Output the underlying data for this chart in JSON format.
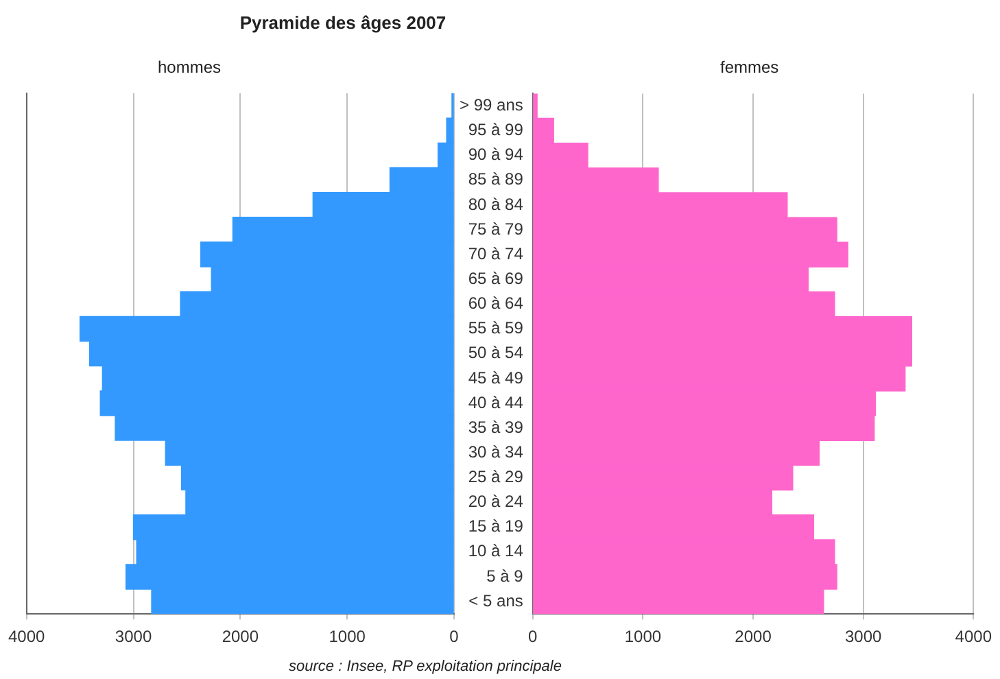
{
  "chart_data": [
    {
      "type": "bar",
      "title": "Pyramide des âges 2007",
      "subtitle": "hommes",
      "orientation": "horizontal",
      "grid": "x",
      "tick_labels": "x",
      "categories": [
        null,
        null,
        null,
        null,
        null,
        null,
        null,
        null,
        null,
        null,
        null,
        null,
        null,
        null,
        null,
        null,
        null,
        null,
        null,
        null,
        null
      ],
      "values": [
        20,
        70,
        150,
        600,
        1320,
        2070,
        2370,
        2270,
        2560,
        3500,
        3410,
        3290,
        3310,
        3170,
        2700,
        2550,
        2510,
        3000,
        2970,
        3070,
        2830
      ],
      "color": "#3399ff",
      "xlim": [
        4000,
        0
      ],
      "xticks": [
        4000,
        3000,
        2000,
        1000,
        0
      ]
    },
    {
      "type": "bar",
      "subtitle": "femmes",
      "orientation": "horizontal",
      "grid": "x",
      "annotations": [
        "source : Insee, RP exploitation principale"
      ],
      "categories": [
        "> 99 ans",
        "95 à 99",
        "90 à 94",
        "85 à 89",
        "80 à 84",
        "75 à 79",
        "70 à 74",
        "65 à 69",
        "60 à 64",
        "55 à 59",
        "50 à 54",
        "45 à 49",
        "40 à 44",
        "35 à 39",
        "30 à 34",
        "25 à 29",
        "20 à 24",
        "15 à 19",
        "10 à 14",
        "5 à 9",
        "< 5 ans"
      ],
      "values": [
        40,
        190,
        500,
        1140,
        2310,
        2760,
        2860,
        2500,
        2740,
        3440,
        3440,
        3380,
        3110,
        3100,
        2600,
        2360,
        2170,
        2550,
        2740,
        2760,
        2640
      ],
      "color": "#ff66cc",
      "xlim": [
        0,
        4000
      ],
      "xticks": [
        0,
        1000,
        2000,
        3000,
        4000
      ]
    }
  ]
}
